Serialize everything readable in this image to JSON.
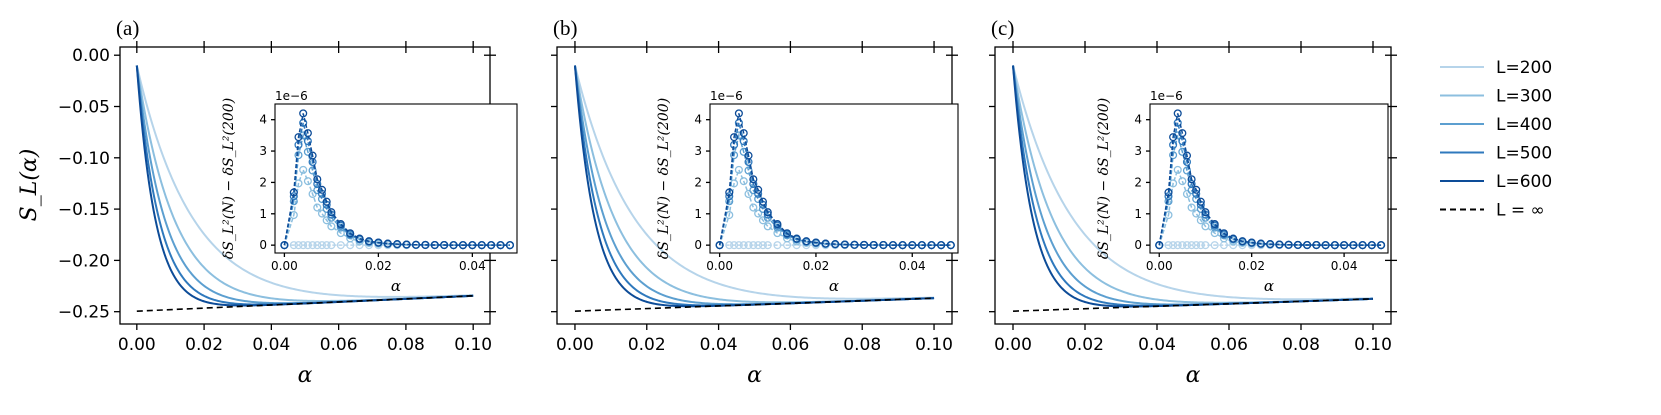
{
  "chart_data": {
    "type": "line",
    "shared": {
      "xlabel": "α",
      "ylabel": "S_L(α)",
      "xlim": [
        -0.005,
        0.105
      ],
      "ylim": [
        -0.262,
        0.008
      ],
      "xticks": [
        0.0,
        0.02,
        0.04,
        0.06,
        0.08,
        0.1
      ],
      "xtick_labels": [
        "0.00",
        "0.02",
        "0.04",
        "0.06",
        "0.08",
        "0.10"
      ],
      "yticks": [
        0.0,
        -0.05,
        -0.1,
        -0.15,
        -0.2,
        -0.25
      ],
      "ytick_labels": [
        "0.00",
        "−0.05",
        "−0.10",
        "−0.15",
        "−0.20",
        "−0.25"
      ],
      "series_styles": [
        {
          "name": "L=200",
          "color": "#b6d4ea",
          "lambda": 60
        },
        {
          "name": "L=300",
          "color": "#8cbfdf",
          "lambda": 90
        },
        {
          "name": "L=400",
          "color": "#5c9fd0",
          "lambda": 120
        },
        {
          "name": "L=500",
          "color": "#2f79bd",
          "lambda": 150
        },
        {
          "name": "L=600",
          "color": "#0d4c98",
          "lambda": 180
        }
      ],
      "limit_line": {
        "name": "L = ∞",
        "dash": true,
        "color": "#000000"
      },
      "start_value": -0.01,
      "inset": {
        "ylabel": "δS_L²(N) − δS_L²(200)",
        "xlabel": "α",
        "scale_label": "1e−6",
        "xlim": [
          -0.002,
          0.0495
        ],
        "ylim": [
          -0.25,
          4.5
        ],
        "xticks": [
          0.0,
          0.02,
          0.04
        ],
        "xtick_labels": [
          "0.00",
          "0.02",
          "0.04"
        ],
        "yticks": [
          0,
          1,
          2,
          3,
          4
        ],
        "ytick_labels": [
          "0",
          "1",
          "2",
          "3",
          "4"
        ],
        "x": [
          0.0,
          0.002,
          0.003,
          0.004,
          0.005,
          0.006,
          0.007,
          0.008,
          0.009,
          0.01,
          0.012,
          0.014,
          0.016,
          0.018,
          0.02,
          0.022,
          0.024,
          0.026,
          0.028,
          0.03,
          0.032,
          0.034,
          0.036,
          0.038,
          0.04,
          0.042,
          0.044,
          0.046,
          0.048
        ],
        "shape": [
          0.0,
          0.4,
          0.82,
          1.0,
          0.85,
          0.68,
          0.5,
          0.42,
          0.33,
          0.25,
          0.16,
          0.09,
          0.05,
          0.03,
          0.02,
          0.012,
          0.008,
          0.005,
          0.003,
          0.002,
          0.001,
          0.001,
          0.0,
          0.0,
          0.0,
          0.0,
          0.0,
          0.0,
          0.0
        ],
        "series": [
          {
            "name": "L=200",
            "color": "#b6d4ea",
            "peak": 0.0
          },
          {
            "name": "L=300",
            "color": "#8cbfdf",
            "peak": 2.4
          },
          {
            "name": "L=400",
            "color": "#5c9fd0",
            "peak": 3.5
          },
          {
            "name": "L=500",
            "color": "#2f79bd",
            "peak": 3.9
          },
          {
            "name": "L=600",
            "color": "#0d4c98",
            "peak": 4.2
          }
        ]
      }
    },
    "panels": [
      {
        "label": "(a)",
        "asymptote": [
          -0.2495,
          -0.2345
        ]
      },
      {
        "label": "(b)",
        "asymptote": [
          -0.2495,
          -0.2368
        ]
      },
      {
        "label": "(c)",
        "asymptote": [
          -0.2495,
          -0.2375
        ]
      }
    ],
    "legend": {
      "position": "right",
      "entries": [
        {
          "label": "L=200",
          "color": "#b6d4ea"
        },
        {
          "label": "L=300",
          "color": "#8cbfdf"
        },
        {
          "label": "L=400",
          "color": "#5c9fd0"
        },
        {
          "label": "L=500",
          "color": "#2f79bd"
        },
        {
          "label": "L=600",
          "color": "#0d4c98"
        },
        {
          "label": "L = ∞",
          "color": "#000000",
          "dashed": true
        }
      ]
    }
  }
}
